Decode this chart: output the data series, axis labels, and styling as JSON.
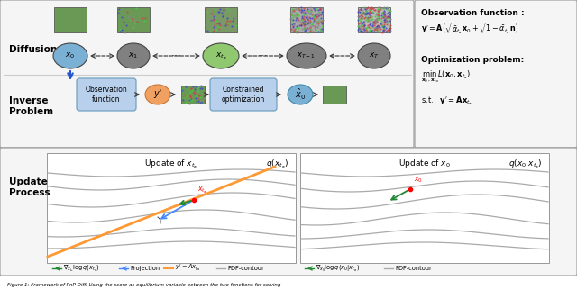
{
  "bg_color": "#ffffff",
  "diffusion_label": "Diffusion",
  "inverse_label": "Inverse\nProblem",
  "update_label": "Update\nProcess",
  "node_colors": {
    "x0": "#7ab0d4",
    "x1": "#808080",
    "xta": "#90c870",
    "xT1": "#808080",
    "xT": "#808080",
    "y_prime": "#f0a060",
    "x0_hat": "#7ab0d4"
  },
  "obs_title": "Observation function :",
  "opt_title": "Optimization problem:",
  "left_plot_title": "Update of $x_{t_a}$",
  "right_plot_title": "Update of $x_0$",
  "left_q_label": "$q(x_{t_a})$",
  "right_q_label": "$q(x_0|x_{t_a})$"
}
